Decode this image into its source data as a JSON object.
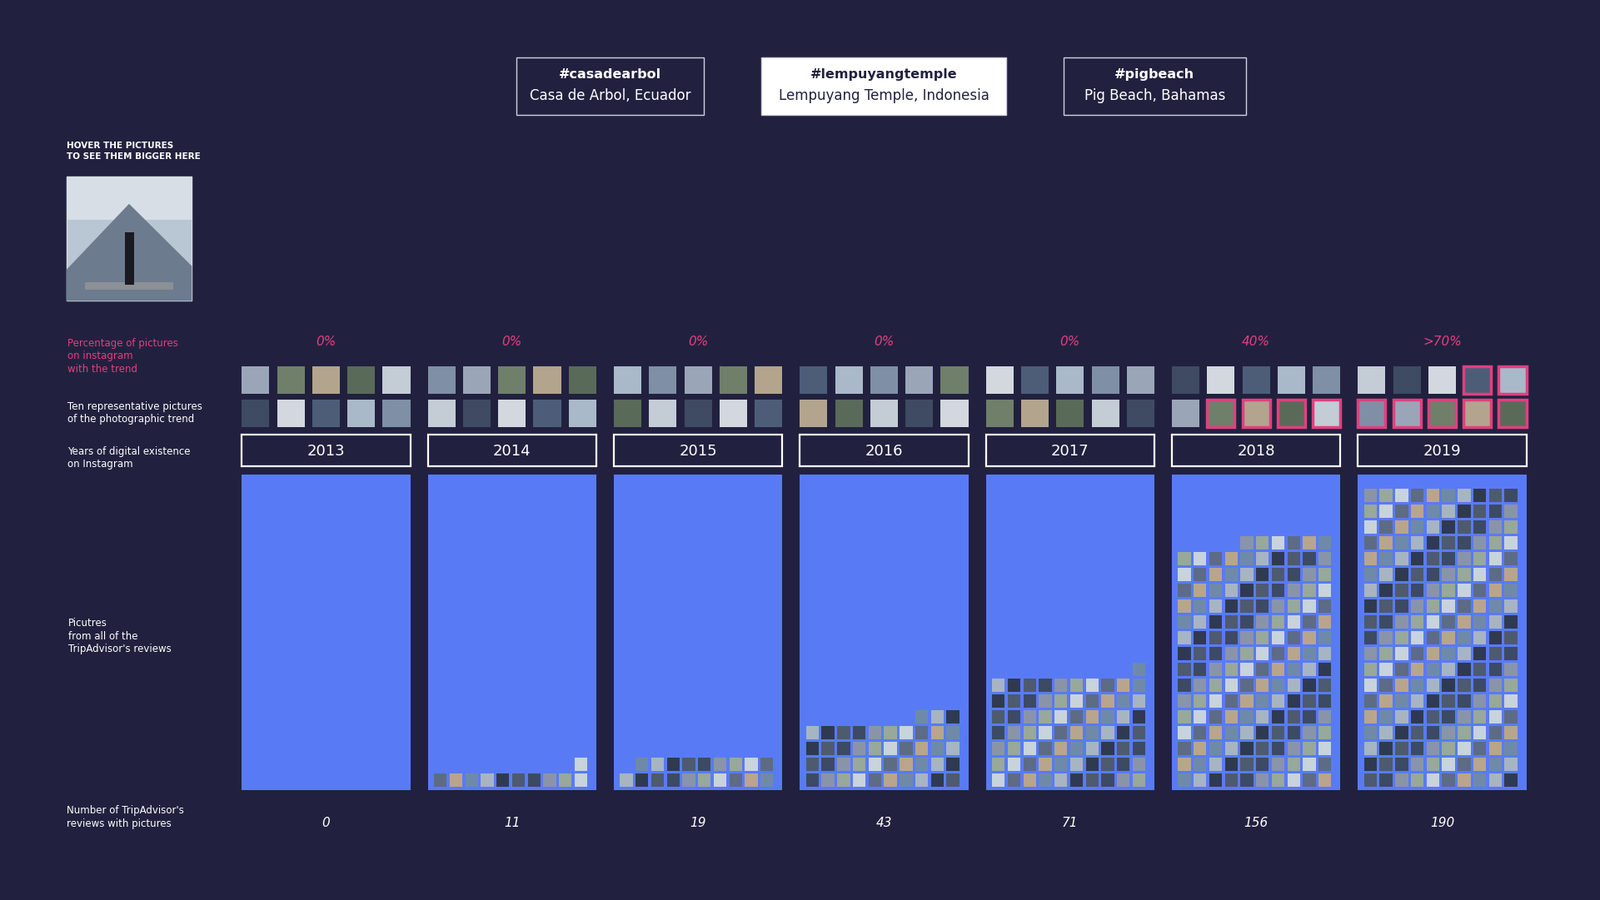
{
  "tabs": [
    {
      "hashtag": "#casadearbol",
      "place": "Casa de Arbol, Ecuador",
      "selected": false
    },
    {
      "hashtag": "#lempuyangtemple",
      "place": "Lempuyang Temple, Indonesia",
      "selected": true
    },
    {
      "hashtag": "#pigbeach",
      "place": "Pig Beach, Bahamas",
      "selected": false
    }
  ],
  "hover_note": "HOVER THE PICTURES\nTO SEE THEM BIGGER HERE",
  "chart_data": {
    "type": "unit",
    "categories": [
      "2013",
      "2014",
      "2015",
      "2016",
      "2017",
      "2018",
      "2019"
    ],
    "row_labels": {
      "percentage": "Percentage of pictures\non instagram\nwith the trend",
      "representative": "Ten representative pictures\nof the photographic trend",
      "years": "Years of digital existence\non Instagram",
      "pictures": "Picutres\nfrom all of the\nTripAdvisor's reviews",
      "count": "Number of TripAdvisor's\nreviews with pictures"
    },
    "series": [
      {
        "name": "Percentage of pictures on instagram with the trend",
        "color": "#e0407f",
        "values": [
          0,
          0,
          0,
          0,
          0,
          40,
          70
        ],
        "value_labels": [
          "0%",
          "0%",
          "0%",
          "0%",
          "0%",
          "40%",
          ">70%"
        ]
      },
      {
        "name": "Number of TripAdvisor's reviews with pictures",
        "color": "#587bf5",
        "values": [
          0,
          11,
          19,
          43,
          71,
          156,
          190
        ]
      }
    ]
  }
}
